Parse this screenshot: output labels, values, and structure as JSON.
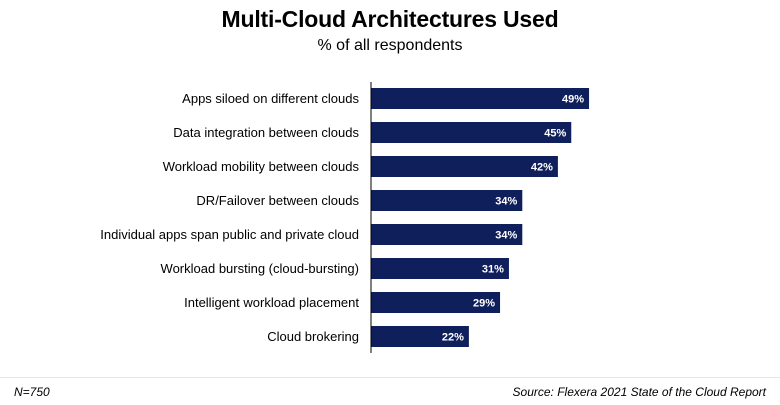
{
  "chart_data": {
    "type": "bar",
    "orientation": "horizontal",
    "title": "Multi-Cloud Architectures Used",
    "subtitle": "% of all respondents",
    "categories": [
      "Apps siloed on different clouds",
      "Data integration between clouds",
      "Workload mobility between clouds",
      "DR/Failover between clouds",
      "Individual apps span public and private cloud",
      "Workload bursting (cloud-bursting)",
      "Intelligent workload placement",
      "Cloud brokering"
    ],
    "values": [
      49,
      45,
      42,
      34,
      34,
      31,
      29,
      22
    ],
    "value_labels": [
      "49%",
      "45%",
      "42%",
      "34%",
      "34%",
      "31%",
      "29%",
      "22%"
    ],
    "xlim": [
      0,
      100
    ],
    "grid": false,
    "legend": "none",
    "bar_color": "#0f1f5c"
  },
  "footer": {
    "note": "N=750",
    "source": "Source: Flexera 2021 State of the Cloud Report"
  }
}
